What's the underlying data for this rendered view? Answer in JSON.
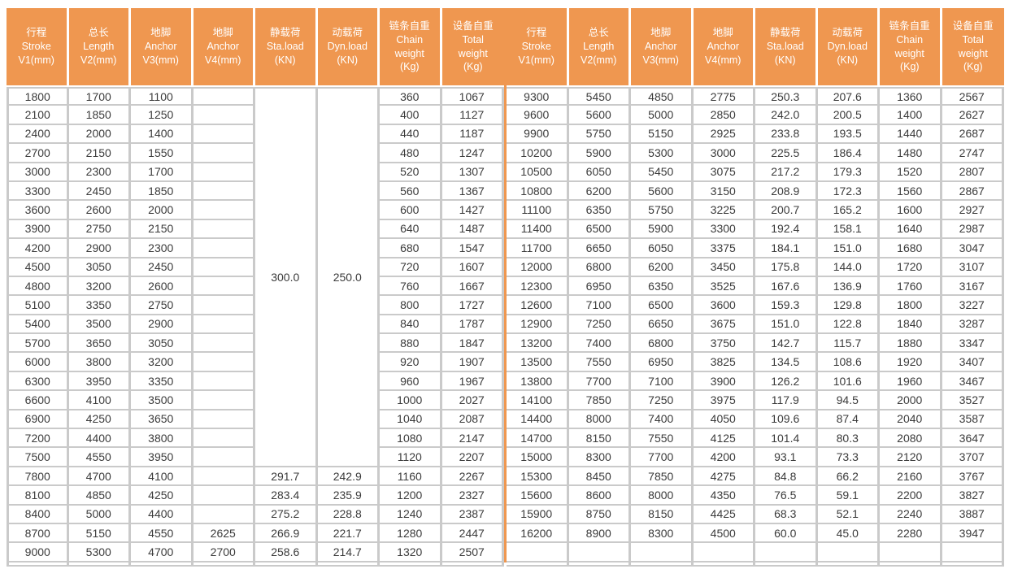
{
  "colors": {
    "header_bg": "#EF9750",
    "divider": "#EF9750",
    "grid": "#CACACA",
    "cell_text": "#3B3B3B",
    "header_text": "#FFFFFF"
  },
  "table": {
    "headers": [
      {
        "key": "stroke",
        "lines": [
          "行程",
          "Stroke",
          "V1(mm)"
        ]
      },
      {
        "key": "length",
        "lines": [
          "总长",
          "Length",
          "V2(mm)"
        ]
      },
      {
        "key": "anchor-v3",
        "lines": [
          "地脚",
          "Anchor",
          "V3(mm)"
        ]
      },
      {
        "key": "anchor-v4",
        "lines": [
          "地脚",
          "Anchor",
          "V4(mm)"
        ]
      },
      {
        "key": "sta-load",
        "lines": [
          "静载荷",
          "Sta.load",
          "(KN)"
        ]
      },
      {
        "key": "dyn-load",
        "lines": [
          "动载荷",
          "Dyn.load",
          "(KN)"
        ]
      },
      {
        "key": "chain-weight",
        "lines": [
          "链条自重",
          "Chain",
          "weight",
          "(Kg)"
        ]
      },
      {
        "key": "total-weight",
        "lines": [
          "设备自重",
          "Total",
          "weight",
          "(Kg)"
        ]
      }
    ],
    "left": {
      "merged": {
        "sta_load": "300.0",
        "dyn_load": "250.0",
        "span": 20
      },
      "rows": [
        [
          "1800",
          "1700",
          "1100",
          "",
          "",
          "",
          "360",
          "1067"
        ],
        [
          "2100",
          "1850",
          "1250",
          "",
          "",
          "",
          "400",
          "1127"
        ],
        [
          "2400",
          "2000",
          "1400",
          "",
          "",
          "",
          "440",
          "1187"
        ],
        [
          "2700",
          "2150",
          "1550",
          "",
          "",
          "",
          "480",
          "1247"
        ],
        [
          "3000",
          "2300",
          "1700",
          "",
          "",
          "",
          "520",
          "1307"
        ],
        [
          "3300",
          "2450",
          "1850",
          "",
          "",
          "",
          "560",
          "1367"
        ],
        [
          "3600",
          "2600",
          "2000",
          "",
          "",
          "",
          "600",
          "1427"
        ],
        [
          "3900",
          "2750",
          "2150",
          "",
          "",
          "",
          "640",
          "1487"
        ],
        [
          "4200",
          "2900",
          "2300",
          "",
          "",
          "",
          "680",
          "1547"
        ],
        [
          "4500",
          "3050",
          "2450",
          "",
          "",
          "",
          "720",
          "1607"
        ],
        [
          "4800",
          "3200",
          "2600",
          "",
          "",
          "",
          "760",
          "1667"
        ],
        [
          "5100",
          "3350",
          "2750",
          "",
          "",
          "",
          "800",
          "1727"
        ],
        [
          "5400",
          "3500",
          "2900",
          "",
          "",
          "",
          "840",
          "1787"
        ],
        [
          "5700",
          "3650",
          "3050",
          "",
          "",
          "",
          "880",
          "1847"
        ],
        [
          "6000",
          "3800",
          "3200",
          "",
          "",
          "",
          "920",
          "1907"
        ],
        [
          "6300",
          "3950",
          "3350",
          "",
          "",
          "",
          "960",
          "1967"
        ],
        [
          "6600",
          "4100",
          "3500",
          "",
          "",
          "",
          "1000",
          "2027"
        ],
        [
          "6900",
          "4250",
          "3650",
          "",
          "",
          "",
          "1040",
          "2087"
        ],
        [
          "7200",
          "4400",
          "3800",
          "",
          "",
          "",
          "1080",
          "2147"
        ],
        [
          "7500",
          "4550",
          "3950",
          "",
          "",
          "",
          "1120",
          "2207"
        ],
        [
          "7800",
          "4700",
          "4100",
          "",
          "291.7",
          "242.9",
          "1160",
          "2267"
        ],
        [
          "8100",
          "4850",
          "4250",
          "",
          "283.4",
          "235.9",
          "1200",
          "2327"
        ],
        [
          "8400",
          "5000",
          "4400",
          "",
          "275.2",
          "228.8",
          "1240",
          "2387"
        ],
        [
          "8700",
          "5150",
          "4550",
          "2625",
          "266.9",
          "221.7",
          "1280",
          "2447"
        ],
        [
          "9000",
          "5300",
          "4700",
          "2700",
          "258.6",
          "214.7",
          "1320",
          "2507"
        ]
      ]
    },
    "right": {
      "rows": [
        [
          "9300",
          "5450",
          "4850",
          "2775",
          "250.3",
          "207.6",
          "1360",
          "2567"
        ],
        [
          "9600",
          "5600",
          "5000",
          "2850",
          "242.0",
          "200.5",
          "1400",
          "2627"
        ],
        [
          "9900",
          "5750",
          "5150",
          "2925",
          "233.8",
          "193.5",
          "1440",
          "2687"
        ],
        [
          "10200",
          "5900",
          "5300",
          "3000",
          "225.5",
          "186.4",
          "1480",
          "2747"
        ],
        [
          "10500",
          "6050",
          "5450",
          "3075",
          "217.2",
          "179.3",
          "1520",
          "2807"
        ],
        [
          "10800",
          "6200",
          "5600",
          "3150",
          "208.9",
          "172.3",
          "1560",
          "2867"
        ],
        [
          "11100",
          "6350",
          "5750",
          "3225",
          "200.7",
          "165.2",
          "1600",
          "2927"
        ],
        [
          "11400",
          "6500",
          "5900",
          "3300",
          "192.4",
          "158.1",
          "1640",
          "2987"
        ],
        [
          "11700",
          "6650",
          "6050",
          "3375",
          "184.1",
          "151.0",
          "1680",
          "3047"
        ],
        [
          "12000",
          "6800",
          "6200",
          "3450",
          "175.8",
          "144.0",
          "1720",
          "3107"
        ],
        [
          "12300",
          "6950",
          "6350",
          "3525",
          "167.6",
          "136.9",
          "1760",
          "3167"
        ],
        [
          "12600",
          "7100",
          "6500",
          "3600",
          "159.3",
          "129.8",
          "1800",
          "3227"
        ],
        [
          "12900",
          "7250",
          "6650",
          "3675",
          "151.0",
          "122.8",
          "1840",
          "3287"
        ],
        [
          "13200",
          "7400",
          "6800",
          "3750",
          "142.7",
          "115.7",
          "1880",
          "3347"
        ],
        [
          "13500",
          "7550",
          "6950",
          "3825",
          "134.5",
          "108.6",
          "1920",
          "3407"
        ],
        [
          "13800",
          "7700",
          "7100",
          "3900",
          "126.2",
          "101.6",
          "1960",
          "3467"
        ],
        [
          "14100",
          "7850",
          "7250",
          "3975",
          "117.9",
          "94.5",
          "2000",
          "3527"
        ],
        [
          "14400",
          "8000",
          "7400",
          "4050",
          "109.6",
          "87.4",
          "2040",
          "3587"
        ],
        [
          "14700",
          "8150",
          "7550",
          "4125",
          "101.4",
          "80.3",
          "2080",
          "3647"
        ],
        [
          "15000",
          "8300",
          "7700",
          "4200",
          "93.1",
          "73.3",
          "2120",
          "3707"
        ],
        [
          "15300",
          "8450",
          "7850",
          "4275",
          "84.8",
          "66.2",
          "2160",
          "3767"
        ],
        [
          "15600",
          "8600",
          "8000",
          "4350",
          "76.5",
          "59.1",
          "2200",
          "3827"
        ],
        [
          "15900",
          "8750",
          "8150",
          "4425",
          "68.3",
          "52.1",
          "2240",
          "3887"
        ],
        [
          "16200",
          "8900",
          "8300",
          "4500",
          "60.0",
          "45.0",
          "2280",
          "3947"
        ],
        [
          "",
          "",
          "",
          "",
          "",
          "",
          "",
          ""
        ]
      ]
    }
  }
}
